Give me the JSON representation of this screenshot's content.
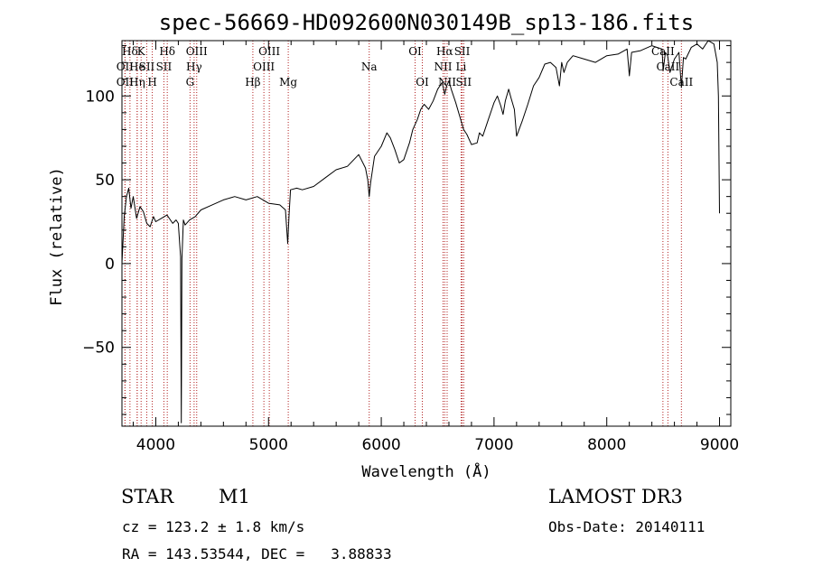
{
  "chart_data": {
    "type": "line",
    "title": "spec-56669-HD092600N030149B_sp13-186.fits",
    "xlabel": "Wavelength (Å)",
    "ylabel": "Flux (relative)",
    "xlim": [
      3700,
      9100
    ],
    "ylim": [
      -97,
      133
    ],
    "xticks": [
      4000,
      5000,
      6000,
      7000,
      8000,
      9000
    ],
    "yticks": [
      -50,
      0,
      50,
      100
    ],
    "grid": false,
    "series": [
      {
        "color": "#000000",
        "x": [
          3700,
          3720,
          3740,
          3760,
          3780,
          3800,
          3830,
          3860,
          3890,
          3920,
          3950,
          3980,
          4000,
          4050,
          4100,
          4150,
          4180,
          4200,
          4220,
          4226,
          4232,
          4245,
          4260,
          4300,
          4350,
          4400,
          4500,
          4600,
          4700,
          4800,
          4900,
          5000,
          5100,
          5150,
          5170,
          5183,
          5195,
          5250,
          5300,
          5400,
          5500,
          5600,
          5700,
          5800,
          5860,
          5880,
          5893,
          5905,
          5940,
          6000,
          6050,
          6080,
          6120,
          6160,
          6200,
          6250,
          6280,
          6320,
          6350,
          6380,
          6420,
          6460,
          6500,
          6540,
          6563,
          6580,
          6600,
          6620,
          6660,
          6700,
          6730,
          6760,
          6800,
          6850,
          6870,
          6900,
          6950,
          6980,
          7000,
          7030,
          7060,
          7080,
          7100,
          7130,
          7150,
          7180,
          7200,
          7250,
          7300,
          7350,
          7400,
          7450,
          7500,
          7550,
          7580,
          7600,
          7620,
          7650,
          7700,
          7800,
          7900,
          8000,
          8100,
          8180,
          8200,
          8220,
          8300,
          8400,
          8490,
          8500,
          8520,
          8540,
          8560,
          8600,
          8640,
          8662,
          8680,
          8700,
          8750,
          8800,
          8850,
          8900,
          8950,
          8980,
          8990,
          9000
        ],
        "y": [
          0,
          28,
          40,
          45,
          33,
          40,
          27,
          34,
          31,
          24,
          22,
          28,
          25,
          27,
          29,
          24,
          26,
          24,
          4,
          -95,
          3,
          26,
          23,
          26,
          28,
          32,
          35,
          38,
          40,
          38,
          40,
          36,
          35,
          32,
          12,
          30,
          44,
          45,
          44,
          46,
          51,
          56,
          58,
          65,
          57,
          50,
          40,
          48,
          64,
          70,
          78,
          75,
          68,
          60,
          62,
          72,
          80,
          86,
          92,
          95,
          92,
          97,
          104,
          108,
          101,
          106,
          109,
          104,
          96,
          87,
          80,
          77,
          71,
          72,
          78,
          76,
          86,
          92,
          96,
          100,
          94,
          89,
          97,
          104,
          99,
          92,
          76,
          85,
          95,
          106,
          111,
          119,
          120,
          117,
          106,
          120,
          114,
          120,
          124,
          122,
          120,
          124,
          125,
          128,
          112,
          126,
          127,
          130,
          128,
          115,
          126,
          124,
          114,
          122,
          126,
          105,
          123,
          122,
          129,
          131,
          128,
          133,
          131,
          120,
          100,
          30
        ],
        "marker": "none"
      }
    ],
    "spectral_lines": [
      {
        "label": "Hδ",
        "x": 3771,
        "row": 0
      },
      {
        "label": "OII",
        "x": 3727,
        "row": 1
      },
      {
        "label": "OII",
        "x": 3727,
        "row": 2
      },
      {
        "label": "K",
        "x": 3870,
        "row": 0
      },
      {
        "label": "He",
        "x": 3835,
        "row": 1
      },
      {
        "label": "Hη",
        "x": 3835,
        "row": 2
      },
      {
        "label": "SII",
        "x": 3920,
        "row": 1
      },
      {
        "label": "H",
        "x": 3969,
        "row": 2
      },
      {
        "label": "Hδ",
        "x": 4102,
        "row": 0
      },
      {
        "label": "SII",
        "x": 4072,
        "row": 1
      },
      {
        "label": "OIII",
        "x": 4363,
        "row": 0
      },
      {
        "label": "Hγ",
        "x": 4340,
        "row": 1
      },
      {
        "label": "G",
        "x": 4304,
        "row": 2
      },
      {
        "label": "OIII",
        "x": 5007,
        "row": 0
      },
      {
        "label": "OIII",
        "x": 4959,
        "row": 1
      },
      {
        "label": "Hβ",
        "x": 4861,
        "row": 2
      },
      {
        "label": "Mg",
        "x": 5175,
        "row": 2
      },
      {
        "label": "Na",
        "x": 5893,
        "row": 1
      },
      {
        "label": "OI",
        "x": 6300,
        "row": 0
      },
      {
        "label": "OI",
        "x": 6364,
        "row": 2
      },
      {
        "label": "Hα",
        "x": 6563,
        "row": 0
      },
      {
        "label": "SII",
        "x": 6717,
        "row": 0
      },
      {
        "label": "NII",
        "x": 6548,
        "row": 1
      },
      {
        "label": "Li",
        "x": 6708,
        "row": 1
      },
      {
        "label": "NII",
        "x": 6584,
        "row": 2
      },
      {
        "label": "SII",
        "x": 6731,
        "row": 2
      },
      {
        "label": "CaII",
        "x": 8498,
        "row": 0
      },
      {
        "label": "CaII",
        "x": 8542,
        "row": 1
      },
      {
        "label": "CaII",
        "x": 8662,
        "row": 2
      }
    ]
  },
  "info": {
    "class": "STAR",
    "subclass": "M1",
    "survey": "LAMOST DR3",
    "cz": "cz = 123.2 ± 1.8 km/s",
    "obs_date": "Obs-Date: 20140111",
    "coords": "RA = 143.53544, DEC =   3.88833"
  }
}
